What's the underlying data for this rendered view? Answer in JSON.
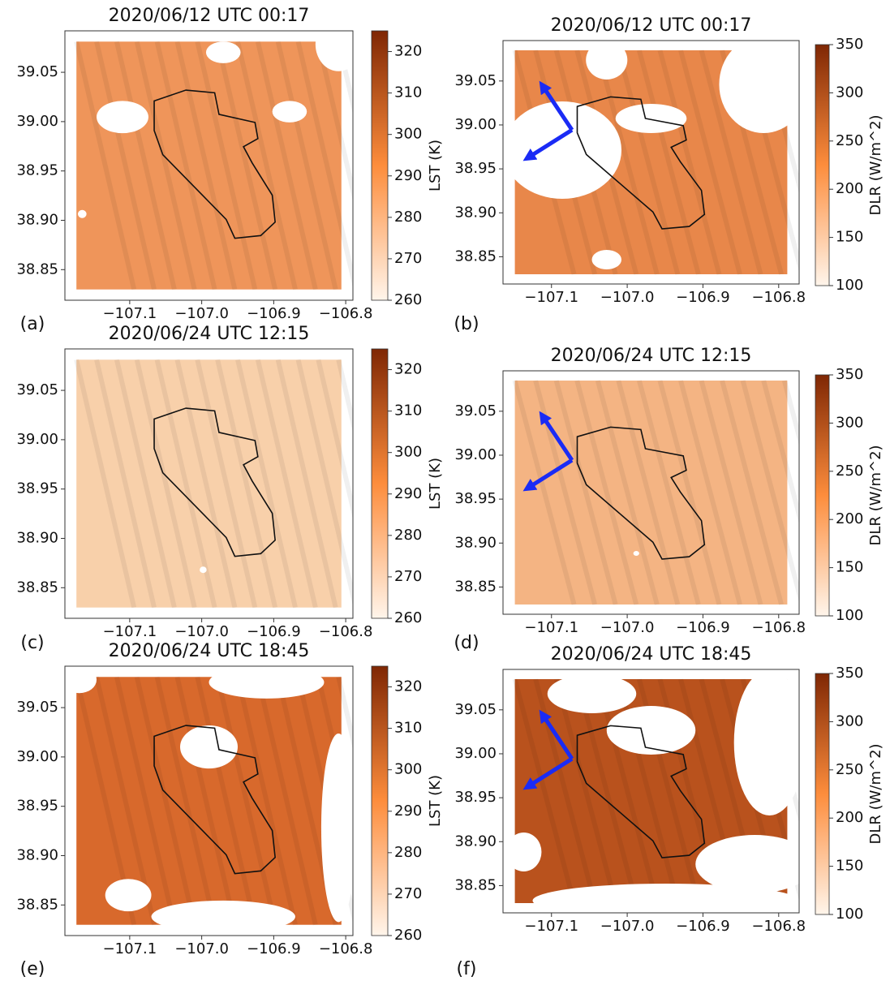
{
  "chart_data": [
    {
      "type": "map",
      "panel_label": "(a)",
      "title": "2020/06/12 UTC 00:17",
      "color": "#ef955a",
      "cmap": [
        "#fff5eb",
        "#fd8d3c",
        "#7f2704"
      ],
      "xlim": [
        -107.19,
        -106.79
      ],
      "ylim": [
        38.819,
        39.092
      ],
      "xticks": [
        {
          "value": -107.1,
          "label": "−107.1"
        },
        {
          "value": -107.0,
          "label": "−107.0"
        },
        {
          "value": -106.9,
          "label": "−106.9"
        },
        {
          "value": -106.8,
          "label": "−106.8"
        }
      ],
      "yticks": [
        38.85,
        {
          "value": 38.9,
          "label": "38.90"
        },
        38.95,
        {
          "value": 39.0,
          "label": "39.00"
        },
        39.05
      ],
      "colorbar_label": "LST  (K)",
      "clim": [
        260,
        325
      ],
      "cticks": [
        260,
        270,
        280,
        290,
        300,
        310,
        320
      ]
    },
    {
      "type": "map",
      "panel_label": "(b)",
      "title": "2020/06/12 UTC 00:17",
      "color": "#e8874a",
      "cmap": [
        "#fff5eb",
        "#fd8d3c",
        "#7f2704"
      ],
      "xlim": [
        -107.164,
        -106.773
      ],
      "ylim": [
        38.819,
        39.096
      ],
      "xticks": [
        {
          "value": -107.1,
          "label": "−107.1"
        },
        {
          "value": -107.0,
          "label": "−107.0"
        },
        {
          "value": -106.9,
          "label": "−106.9"
        },
        {
          "value": -106.8,
          "label": "−106.8"
        }
      ],
      "yticks": [
        38.85,
        {
          "value": 38.9,
          "label": "38.90"
        },
        38.95,
        {
          "value": 39.0,
          "label": "39.00"
        },
        39.05
      ],
      "colorbar_label": "DLR (W/m^2)",
      "clim": [
        100,
        350
      ],
      "cticks": [
        100,
        150,
        200,
        250,
        300,
        350
      ]
    },
    {
      "type": "map",
      "panel_label": "(c)",
      "title": "2020/06/24 UTC 12:15",
      "color": "#f8d0aa",
      "cmap": [
        "#fff5eb",
        "#fd8d3c",
        "#7f2704"
      ],
      "xlim": [
        -107.19,
        -106.79
      ],
      "ylim": [
        38.819,
        39.092
      ],
      "xticks": [
        {
          "value": -107.1,
          "label": "−107.1"
        },
        {
          "value": -107.0,
          "label": "−107.0"
        },
        {
          "value": -106.9,
          "label": "−106.9"
        },
        {
          "value": -106.8,
          "label": "−106.8"
        }
      ],
      "yticks": [
        38.85,
        {
          "value": 38.9,
          "label": "38.90"
        },
        38.95,
        {
          "value": 39.0,
          "label": "39.00"
        },
        39.05
      ],
      "colorbar_label": "LST  (K)",
      "clim": [
        260,
        325
      ],
      "cticks": [
        260,
        270,
        280,
        290,
        300,
        310,
        320
      ]
    },
    {
      "type": "map",
      "panel_label": "(d)",
      "title": "2020/06/24 UTC 12:15",
      "color": "#f4b483",
      "cmap": [
        "#fff5eb",
        "#fd8d3c",
        "#7f2704"
      ],
      "xlim": [
        -107.164,
        -106.773
      ],
      "ylim": [
        38.819,
        39.096
      ],
      "xticks": [
        {
          "value": -107.1,
          "label": "−107.1"
        },
        {
          "value": -107.0,
          "label": "−107.0"
        },
        {
          "value": -106.9,
          "label": "−106.9"
        },
        {
          "value": -106.8,
          "label": "−106.8"
        }
      ],
      "yticks": [
        38.85,
        {
          "value": 38.9,
          "label": "38.90"
        },
        38.95,
        {
          "value": 39.0,
          "label": "39.00"
        },
        39.05
      ],
      "colorbar_label": "DLR (W/m^2)",
      "clim": [
        100,
        350
      ],
      "cticks": [
        100,
        150,
        200,
        250,
        300,
        350
      ]
    },
    {
      "type": "map",
      "panel_label": "(e)",
      "title": "2020/06/24 UTC 18:45",
      "color": "#d8692c",
      "cmap": [
        "#fff5eb",
        "#fd8d3c",
        "#7f2704"
      ],
      "xlim": [
        -107.19,
        -106.79
      ],
      "ylim": [
        38.819,
        39.092
      ],
      "xticks": [
        {
          "value": -107.1,
          "label": "−107.1"
        },
        {
          "value": -107.0,
          "label": "−107.0"
        },
        {
          "value": -106.9,
          "label": "−106.9"
        },
        {
          "value": -106.8,
          "label": "−106.8"
        }
      ],
      "yticks": [
        38.85,
        {
          "value": 38.9,
          "label": "38.90"
        },
        38.95,
        {
          "value": 39.0,
          "label": "39.00"
        },
        39.05
      ],
      "colorbar_label": "LST  (K)",
      "clim": [
        260,
        325
      ],
      "cticks": [
        260,
        270,
        280,
        290,
        300,
        310,
        320
      ]
    },
    {
      "type": "map",
      "panel_label": "(f)",
      "title": "2020/06/24 UTC 18:45",
      "color": "#b9521d",
      "cmap": [
        "#fff5eb",
        "#fd8d3c",
        "#7f2704"
      ],
      "xlim": [
        -107.164,
        -106.773
      ],
      "ylim": [
        38.819,
        39.096
      ],
      "xticks": [
        {
          "value": -107.1,
          "label": "−107.1"
        },
        {
          "value": -107.0,
          "label": "−107.0"
        },
        {
          "value": -106.9,
          "label": "−106.9"
        },
        {
          "value": -106.8,
          "label": "−106.8"
        }
      ],
      "yticks": [
        38.85,
        {
          "value": 38.9,
          "label": "38.90"
        },
        38.95,
        {
          "value": 39.0,
          "label": "39.00"
        },
        39.05
      ],
      "colorbar_label": "DLR (W/m^2)",
      "clim": [
        100,
        350
      ],
      "cticks": [
        100,
        150,
        200,
        250,
        300,
        350
      ]
    }
  ]
}
